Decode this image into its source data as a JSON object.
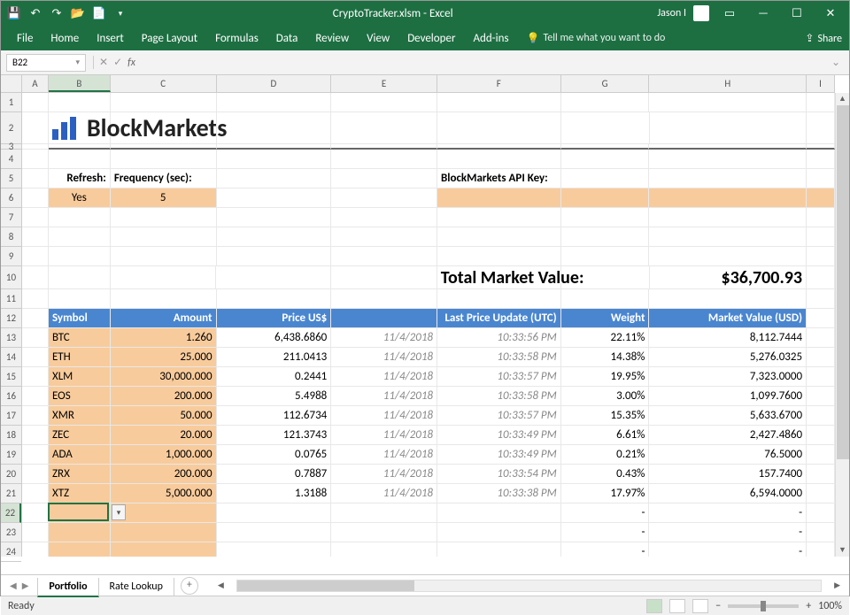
{
  "title": "CryptoTracker.xlsm - Excel",
  "user": "Jason I",
  "ribbon_tabs": [
    "File",
    "Home",
    "Insert",
    "Page Layout",
    "Formulas",
    "Data",
    "Review",
    "View",
    "Developer",
    "Add-ins"
  ],
  "tellme": "Tell me what you want to do",
  "share": "Share",
  "namebox": "B22",
  "columns": [
    {
      "l": "A",
      "w": 30
    },
    {
      "l": "B",
      "w": 70
    },
    {
      "l": "C",
      "w": 120
    },
    {
      "l": "D",
      "w": 130
    },
    {
      "l": "E",
      "w": 120
    },
    {
      "l": "F",
      "w": 140
    },
    {
      "l": "G",
      "w": 100
    },
    {
      "l": "H",
      "w": 178
    },
    {
      "l": "I",
      "w": 32
    }
  ],
  "row_heights": {
    "default": 22,
    "2": 36,
    "3": 6,
    "10": 26
  },
  "brand": "BlockMarkets",
  "labels": {
    "refresh": "Refresh:",
    "frequency": "Frequency (sec):",
    "api_key": "BlockMarkets API Key:",
    "total": "Total Market Value:"
  },
  "refresh_value": "Yes",
  "frequency_value": "5",
  "total_value": "$36,700.93",
  "headers": [
    "Symbol",
    "Amount",
    "Price US$",
    "Last Price Update (UTC)",
    "",
    "Weight",
    "Market Value (USD)"
  ],
  "data_rows": [
    {
      "sym": "BTC",
      "amt": "1.260",
      "price": "6,438.6860",
      "date": "11/4/2018",
      "time": "10:33:56 PM",
      "wt": "22.11%",
      "mv": "8,112.7444"
    },
    {
      "sym": "ETH",
      "amt": "25.000",
      "price": "211.0413",
      "date": "11/4/2018",
      "time": "10:33:58 PM",
      "wt": "14.38%",
      "mv": "5,276.0325"
    },
    {
      "sym": "XLM",
      "amt": "30,000.000",
      "price": "0.2441",
      "date": "11/4/2018",
      "time": "10:33:57 PM",
      "wt": "19.95%",
      "mv": "7,323.0000"
    },
    {
      "sym": "EOS",
      "amt": "200.000",
      "price": "5.4988",
      "date": "11/4/2018",
      "time": "10:33:58 PM",
      "wt": "3.00%",
      "mv": "1,099.7600"
    },
    {
      "sym": "XMR",
      "amt": "50.000",
      "price": "112.6734",
      "date": "11/4/2018",
      "time": "10:33:57 PM",
      "wt": "15.35%",
      "mv": "5,633.6700"
    },
    {
      "sym": "ZEC",
      "amt": "20.000",
      "price": "121.3743",
      "date": "11/4/2018",
      "time": "10:33:49 PM",
      "wt": "6.61%",
      "mv": "2,427.4860"
    },
    {
      "sym": "ADA",
      "amt": "1,000.000",
      "price": "0.0765",
      "date": "11/4/2018",
      "time": "10:33:49 PM",
      "wt": "0.21%",
      "mv": "76.5000"
    },
    {
      "sym": "ZRX",
      "amt": "200.000",
      "price": "0.7887",
      "date": "11/4/2018",
      "time": "10:33:54 PM",
      "wt": "0.43%",
      "mv": "157.7400"
    },
    {
      "sym": "XTZ",
      "amt": "5,000.000",
      "price": "1.3188",
      "date": "11/4/2018",
      "time": "10:33:38 PM",
      "wt": "17.97%",
      "mv": "6,594.0000"
    }
  ],
  "empty_dash": "-",
  "sheet_tabs": [
    "Portfolio",
    "Rate Lookup"
  ],
  "active_sheet": 0,
  "status_ready": "Ready",
  "zoom": "100%",
  "colors": {
    "green": "#1d6f42",
    "orange": "#f8cb9c",
    "blue_header": "#4a86d0",
    "selection": "#217346"
  },
  "selected_cell": {
    "row": 22,
    "col": "B"
  }
}
